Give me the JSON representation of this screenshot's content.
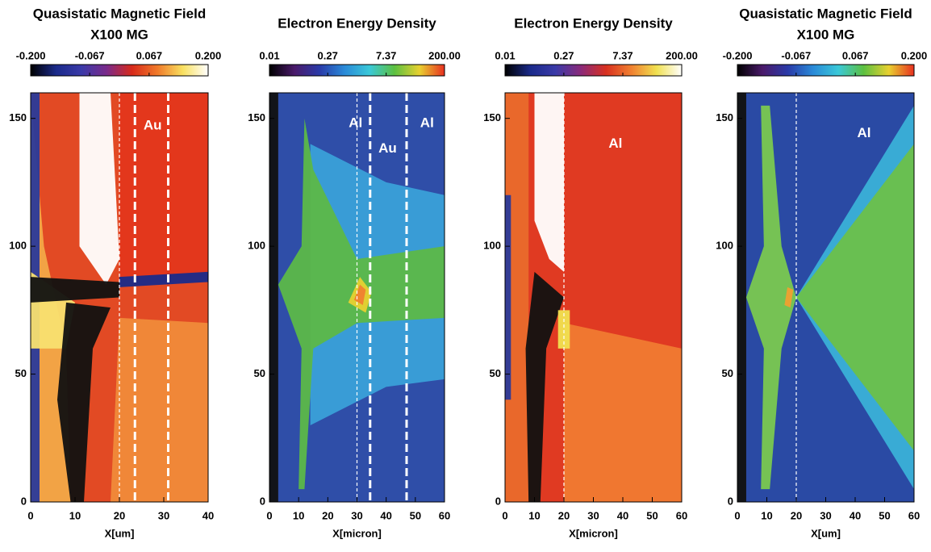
{
  "chart_data": [
    {
      "type": "heatmap",
      "title": "Quasistatic Magnetic Field",
      "subtitle": "X100 MG",
      "x_label": "X[um]",
      "xlim": [
        0,
        40
      ],
      "xticks": [
        0,
        10,
        20,
        30,
        40
      ],
      "ylim": [
        0,
        160
      ],
      "yticks": [
        0,
        50,
        100,
        150
      ],
      "colorbar": {
        "lim": [
          -0.2,
          0.2
        ],
        "log": false,
        "ticks": [
          {
            "value": -0.2,
            "label": "-0.200"
          },
          {
            "value": -0.067,
            "label": "-0.067"
          },
          {
            "value": 0.067,
            "label": "0.067"
          },
          {
            "value": 0.2,
            "label": "0.200"
          }
        ],
        "colors": [
          "#000000",
          "#1a2a8a",
          "#3a3aa8",
          "#7a2a8a",
          "#d82a1a",
          "#f07a2a",
          "#f8e060",
          "#ffffff"
        ]
      },
      "interfaces": [
        {
          "x": 20,
          "style": "thin"
        },
        {
          "x": 23.5,
          "style": "thick"
        },
        {
          "x": 31,
          "style": "thick"
        }
      ],
      "annotations": [
        "Au"
      ]
    },
    {
      "type": "heatmap",
      "title": "Electron Energy Density",
      "x_label": "X[micron]",
      "xlim": [
        0,
        60
      ],
      "xticks": [
        0,
        10,
        20,
        30,
        40,
        50,
        60
      ],
      "ylim": [
        0,
        160
      ],
      "yticks": [
        0,
        50,
        100,
        150
      ],
      "colorbar": {
        "lim": [
          0.01,
          200
        ],
        "log": true,
        "ticks": [
          0.01,
          0.27,
          7.37,
          {
            "value": 200,
            "label": "200.00"
          }
        ],
        "colors": [
          "#000000",
          "#4a1a6a",
          "#2a3aa8",
          "#2a8ad8",
          "#3ac8d8",
          "#5cc040",
          "#e8d030",
          "#e83020"
        ]
      },
      "interfaces": [
        {
          "x": 30,
          "style": "thin"
        },
        {
          "x": 34.5,
          "style": "thick"
        },
        {
          "x": 47,
          "style": "thick"
        }
      ],
      "annotations": [
        "Al",
        "Au",
        "Al"
      ]
    },
    {
      "type": "heatmap",
      "title": "Electron Energy Density",
      "x_label": "X[micron]",
      "xlim": [
        0,
        60
      ],
      "xticks": [
        0,
        10,
        20,
        30,
        40,
        50,
        60
      ],
      "ylim": [
        0,
        160
      ],
      "yticks": [
        0,
        50,
        100,
        150
      ],
      "colorbar": {
        "lim": [
          0.01,
          200
        ],
        "log": true,
        "ticks": [
          0.01,
          0.27,
          7.37,
          {
            "value": 200,
            "label": "200.00"
          }
        ],
        "colors": [
          "#000000",
          "#1a2a8a",
          "#3a3aa8",
          "#8a2a7a",
          "#d83020",
          "#f08030",
          "#f0e050",
          "#ffffff"
        ]
      },
      "interfaces": [
        {
          "x": 20,
          "style": "thin"
        }
      ],
      "annotations": [
        "Al"
      ]
    },
    {
      "type": "heatmap",
      "title": "Quasistatic Magnetic Field",
      "subtitle": "X100 MG",
      "x_label": "X[um]",
      "xlim": [
        0,
        60
      ],
      "xticks": [
        0,
        10,
        20,
        30,
        40,
        50,
        60
      ],
      "ylim": [
        0,
        160
      ],
      "yticks": [
        0,
        50,
        100,
        150
      ],
      "colorbar": {
        "lim": [
          -0.2,
          0.2
        ],
        "log": false,
        "ticks": [
          {
            "value": -0.2,
            "label": "-0.200"
          },
          {
            "value": -0.067,
            "label": "-0.067"
          },
          {
            "value": 0.067,
            "label": "0.067"
          },
          {
            "value": 0.2,
            "label": "0.200"
          }
        ],
        "colors": [
          "#000000",
          "#4a1a6a",
          "#2a3aa8",
          "#2a8ad8",
          "#3ac8d8",
          "#5cc040",
          "#e8d030",
          "#e83020"
        ]
      },
      "interfaces": [
        {
          "x": 20,
          "style": "thin"
        }
      ],
      "annotations": [
        "Al"
      ]
    }
  ]
}
